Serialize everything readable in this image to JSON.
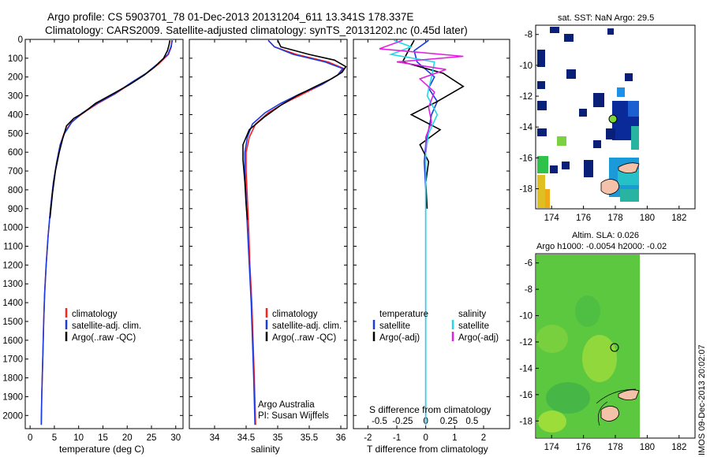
{
  "header": {
    "line1": "Argo profile: CS 5903701_78 01-Dec-2013 20131204_611 13.341S 178.337E",
    "line2": "Climatology: CARS2009. Satellite-adjusted climatology: synTS_20131202.nc (0.45d later)"
  },
  "depth_axis": {
    "ylim": [
      0,
      2070
    ],
    "ticks": [
      0,
      100,
      200,
      300,
      400,
      500,
      600,
      700,
      800,
      900,
      1000,
      1100,
      1200,
      1300,
      1400,
      1500,
      1600,
      1700,
      1800,
      1900,
      2000
    ]
  },
  "colors": {
    "climatology": "#ff2020",
    "satellite": "#1a3ce0",
    "argo": "#000000",
    "sal_sat": "#20d8e8",
    "sal_argo": "#e020e0"
  },
  "chart_data": [
    {
      "id": "temperature",
      "type": "line",
      "xlabel": "temperature (deg C)",
      "xlim": [
        -1,
        31.5
      ],
      "xticks": [
        0,
        5,
        10,
        15,
        20,
        25,
        30
      ],
      "legend": [
        "climatology",
        "satellite-adj. clim.",
        "Argo(..raw -QC)"
      ],
      "series": [
        {
          "name": "climatology",
          "color": "#ff2020",
          "points": [
            [
              29.2,
              5
            ],
            [
              29.1,
              40
            ],
            [
              28.5,
              80
            ],
            [
              26.5,
              130
            ],
            [
              24,
              180
            ],
            [
              21,
              230
            ],
            [
              17.5,
              290
            ],
            [
              14,
              340
            ],
            [
              11,
              390
            ],
            [
              8.5,
              440
            ],
            [
              7,
              500
            ],
            [
              6.2,
              560
            ],
            [
              5.5,
              650
            ],
            [
              4.8,
              760
            ],
            [
              4.2,
              900
            ],
            [
              3.7,
              1050
            ],
            [
              3.3,
              1200
            ],
            [
              3,
              1350
            ],
            [
              2.8,
              1500
            ],
            [
              2.6,
              1700
            ],
            [
              2.4,
              1900
            ],
            [
              2.3,
              2050
            ]
          ]
        },
        {
          "name": "satellite-adj. clim.",
          "color": "#1a3ce0",
          "points": [
            [
              29.3,
              5
            ],
            [
              29,
              40
            ],
            [
              28.4,
              80
            ],
            [
              26.3,
              130
            ],
            [
              23.9,
              180
            ],
            [
              20.8,
              230
            ],
            [
              17.4,
              290
            ],
            [
              13.8,
              340
            ],
            [
              10.8,
              390
            ],
            [
              8.6,
              440
            ],
            [
              7.1,
              500
            ],
            [
              6.2,
              560
            ],
            [
              5.5,
              650
            ],
            [
              4.8,
              760
            ],
            [
              4.2,
              900
            ],
            [
              3.7,
              1050
            ],
            [
              3.3,
              1200
            ],
            [
              3,
              1350
            ],
            [
              2.8,
              1500
            ],
            [
              2.6,
              1700
            ],
            [
              2.4,
              1900
            ],
            [
              2.3,
              2050
            ]
          ]
        },
        {
          "name": "Argo(..raw -QC)",
          "color": "#000000",
          "points": [
            [
              28.8,
              5
            ],
            [
              28.6,
              30
            ],
            [
              28.3,
              60
            ],
            [
              27.5,
              100
            ],
            [
              25.5,
              150
            ],
            [
              23.5,
              190
            ],
            [
              20.5,
              240
            ],
            [
              17,
              290
            ],
            [
              13.5,
              340
            ],
            [
              11,
              390
            ],
            [
              9,
              420
            ],
            [
              7.5,
              460
            ],
            [
              6.8,
              520
            ],
            [
              6,
              600
            ],
            [
              5.2,
              700
            ],
            [
              4.6,
              820
            ],
            [
              4.1,
              950
            ]
          ]
        }
      ]
    },
    {
      "id": "salinity",
      "type": "line",
      "xlabel": "salinity",
      "xlim": [
        33.6,
        36.1
      ],
      "xticks": [
        34,
        34.5,
        35,
        35.5,
        36
      ],
      "legend": [
        "climatology",
        "satellite-adj. clim.",
        "Argo(..raw -QC)"
      ],
      "series": [
        {
          "name": "climatology",
          "color": "#ff2020",
          "points": [
            [
              34.85,
              5
            ],
            [
              34.95,
              40
            ],
            [
              35.3,
              80
            ],
            [
              35.8,
              120
            ],
            [
              36.05,
              155
            ],
            [
              35.95,
              190
            ],
            [
              35.7,
              240
            ],
            [
              35.4,
              290
            ],
            [
              35.1,
              340
            ],
            [
              34.85,
              390
            ],
            [
              34.65,
              450
            ],
            [
              34.55,
              520
            ],
            [
              34.5,
              600
            ],
            [
              34.5,
              700
            ],
            [
              34.52,
              850
            ],
            [
              34.54,
              1000
            ],
            [
              34.56,
              1200
            ],
            [
              34.59,
              1400
            ],
            [
              34.61,
              1600
            ],
            [
              34.63,
              1800
            ],
            [
              34.65,
              2050
            ]
          ]
        },
        {
          "name": "satellite-adj. clim.",
          "color": "#1a3ce0",
          "points": [
            [
              34.85,
              5
            ],
            [
              34.95,
              40
            ],
            [
              35.25,
              80
            ],
            [
              35.75,
              120
            ],
            [
              36.03,
              155
            ],
            [
              35.95,
              190
            ],
            [
              35.7,
              240
            ],
            [
              35.35,
              290
            ],
            [
              35.05,
              340
            ],
            [
              34.8,
              390
            ],
            [
              34.6,
              450
            ],
            [
              34.52,
              520
            ],
            [
              34.48,
              600
            ],
            [
              34.48,
              700
            ],
            [
              34.5,
              850
            ],
            [
              34.52,
              1000
            ],
            [
              34.55,
              1200
            ],
            [
              34.58,
              1400
            ],
            [
              34.6,
              1600
            ],
            [
              34.62,
              1800
            ],
            [
              34.64,
              2050
            ]
          ]
        },
        {
          "name": "Argo(..raw -QC)",
          "color": "#000000",
          "points": [
            [
              35,
              5
            ],
            [
              35.05,
              40
            ],
            [
              35.5,
              80
            ],
            [
              35.9,
              110
            ],
            [
              36.08,
              145
            ],
            [
              36.02,
              175
            ],
            [
              35.85,
              210
            ],
            [
              35.6,
              250
            ],
            [
              35.3,
              300
            ],
            [
              35.05,
              350
            ],
            [
              34.8,
              410
            ],
            [
              34.55,
              480
            ],
            [
              34.45,
              560
            ],
            [
              34.45,
              640
            ],
            [
              34.48,
              760
            ],
            [
              34.5,
              880
            ],
            [
              34.52,
              960
            ]
          ]
        }
      ],
      "annotation": {
        "line1": "Argo Australia",
        "line2": "PI: Susan Wijffels"
      }
    },
    {
      "id": "difference",
      "type": "line",
      "xlabel": "T difference from climatology",
      "xlim": [
        -2.5,
        2.9
      ],
      "xticks": [
        -2,
        -1,
        0,
        1,
        2
      ],
      "top_label": "S difference from climatology",
      "top_ticks": [
        {
          "label": "-0.5",
          "t": -1.6
        },
        {
          "label": "-0.25",
          "t": -0.8
        },
        {
          "label": "0",
          "t": 0
        },
        {
          "label": "0.25",
          "t": 0.8
        },
        {
          "label": "0.5",
          "t": 1.6
        }
      ],
      "legend_temp": {
        "title": "temperature",
        "items": [
          "satellite",
          "Argo(-adj)"
        ]
      },
      "legend_sal": {
        "title": "salinity",
        "items": [
          "satellite",
          "Argo(-adj)"
        ]
      },
      "series": [
        {
          "name": "T satellite",
          "color": "#1a3ce0",
          "points": [
            [
              0.1,
              5
            ],
            [
              -0.4,
              60
            ],
            [
              -0.3,
              120
            ],
            [
              0.3,
              200
            ],
            [
              0.1,
              260
            ],
            [
              0.4,
              330
            ],
            [
              0.2,
              400
            ],
            [
              0.1,
              480
            ],
            [
              0,
              560
            ],
            [
              -0.05,
              650
            ],
            [
              0,
              800
            ],
            [
              0,
              1000
            ],
            [
              0,
              1200
            ],
            [
              0,
              1500
            ],
            [
              0,
              1800
            ],
            [
              0,
              2050
            ]
          ]
        },
        {
          "name": "T Argo(-adj)",
          "color": "#000000",
          "points": [
            [
              -0.4,
              5
            ],
            [
              -0.6,
              60
            ],
            [
              -0.8,
              120
            ],
            [
              0.6,
              180
            ],
            [
              1.3,
              250
            ],
            [
              0.4,
              330
            ],
            [
              -0.5,
              400
            ],
            [
              0.5,
              480
            ],
            [
              -0.2,
              560
            ],
            [
              0.1,
              650
            ],
            [
              0,
              760
            ],
            [
              0.05,
              900
            ]
          ]
        },
        {
          "name": "S satellite",
          "color": "#20d8e8",
          "points": [
            [
              -1.1,
              5
            ],
            [
              -0.5,
              40
            ],
            [
              -1.2,
              80
            ],
            [
              0.3,
              120
            ],
            [
              0.2,
              200
            ],
            [
              0.05,
              300
            ],
            [
              0.4,
              400
            ],
            [
              0.1,
              500
            ],
            [
              0,
              600
            ],
            [
              0,
              800
            ],
            [
              0,
              1100
            ],
            [
              0,
              1500
            ],
            [
              0,
              1800
            ],
            [
              0,
              2050
            ]
          ]
        },
        {
          "name": "S Argo(-adj)",
          "color": "#e020e0",
          "points": [
            [
              -0.8,
              5
            ],
            [
              -1.6,
              50
            ],
            [
              1.3,
              90
            ],
            [
              -1.0,
              120
            ],
            [
              0.7,
              160
            ],
            [
              -0.2,
              210
            ],
            [
              0.3,
              280
            ],
            [
              0.1,
              360
            ],
            [
              0.2,
              440
            ],
            [
              0,
              520
            ],
            [
              0,
              600
            ]
          ]
        }
      ]
    }
  ],
  "maps": {
    "sst": {
      "title": "sat. SST: NaN Argo: 29.5",
      "xticks": [
        174,
        176,
        178,
        180,
        182
      ],
      "yticks": [
        -8,
        -10,
        -12,
        -14,
        -16,
        -18
      ]
    },
    "sla": {
      "title1": "Altim. SLA: 0.026",
      "title2": "Argo h1000: -0.0054 h2000: -0.02",
      "xticks": [
        174,
        176,
        178,
        180,
        182
      ],
      "yticks": [
        -6,
        -8,
        -10,
        -12,
        -14,
        -16,
        -18
      ]
    }
  },
  "side_text": "IMOS 09-Dec-2013 20:02:07"
}
